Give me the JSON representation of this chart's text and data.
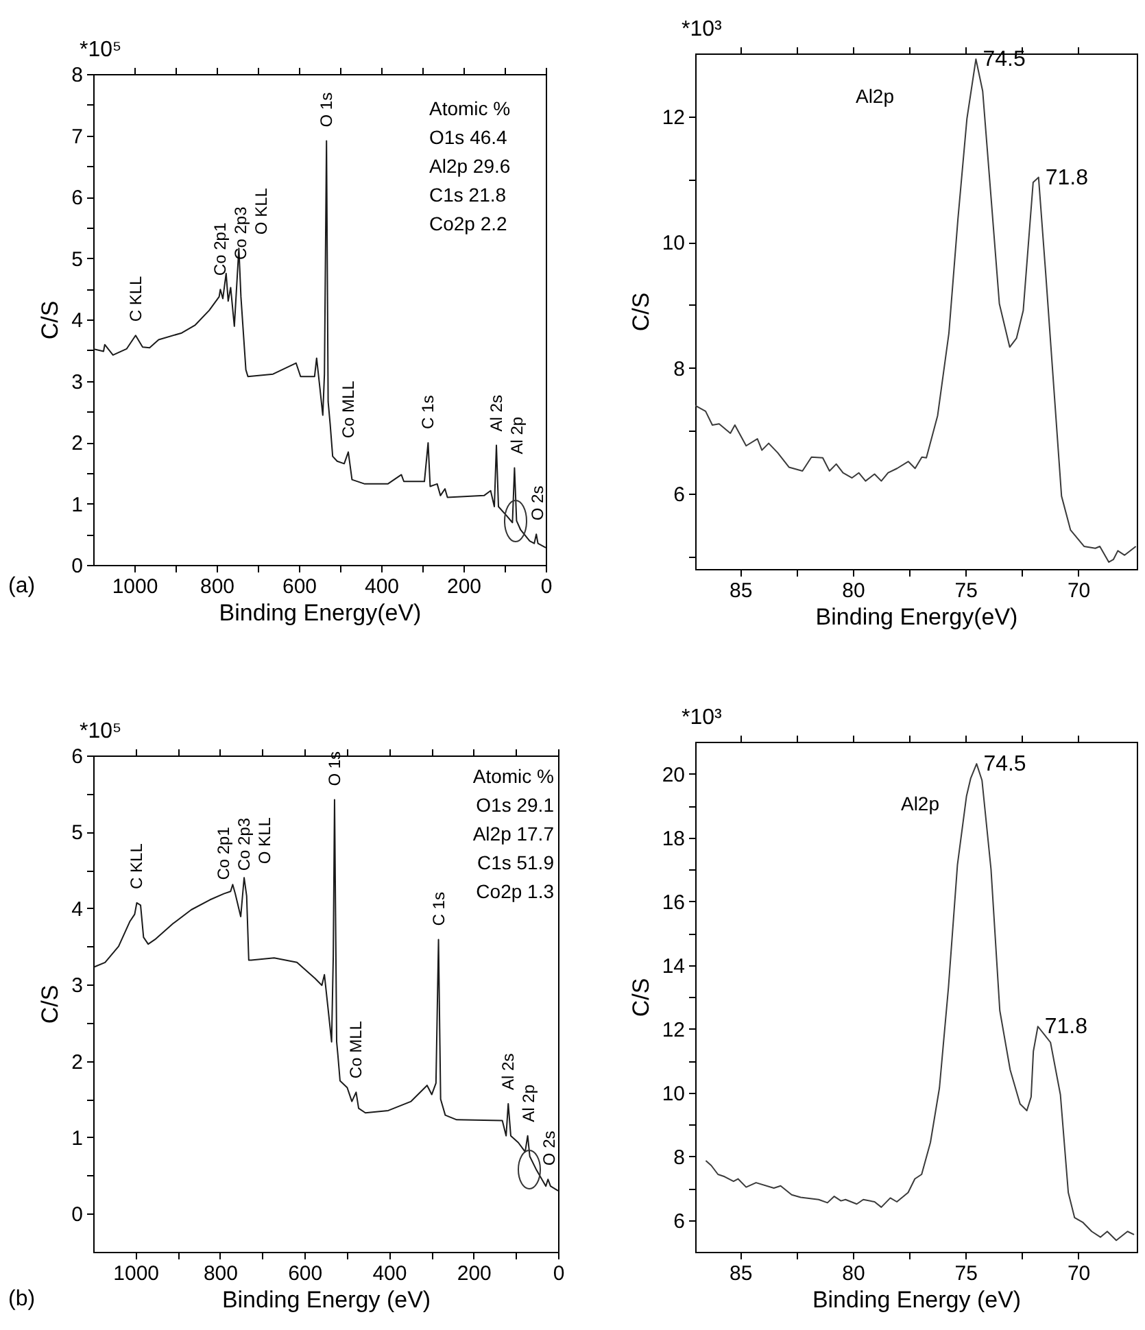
{
  "chart_data": [
    {
      "type": "line",
      "xlabel": "Binding Energy(eV)",
      "ylabel": "C/S",
      "xlim": [
        1100,
        0
      ],
      "ylim": [
        0,
        8
      ],
      "xticks": [
        1000,
        {
          "value": 900,
          "label": null
        },
        800,
        {
          "value": 700,
          "label": null
        },
        600,
        {
          "value": 500,
          "label": null
        },
        400,
        {
          "value": 300,
          "label": null
        },
        200,
        {
          "value": 100,
          "label": null
        },
        0
      ],
      "yticks": [
        0,
        {
          "value": 0.5,
          "label": null
        },
        1,
        {
          "value": 1.5,
          "label": null
        },
        2,
        {
          "value": 2.5,
          "label": null
        },
        3,
        {
          "value": 3.5,
          "label": null
        },
        4,
        {
          "value": 4.5,
          "label": null
        },
        5,
        {
          "value": 5.5,
          "label": null
        },
        6,
        {
          "value": 6.5,
          "label": null
        },
        7,
        {
          "value": 7.5,
          "label": null
        },
        8
      ],
      "series": [
        {
          "color": "#1a1a1a",
          "x": [
            1100,
            1075,
            1072,
            1052,
            1019,
            997,
            980,
            963,
            941,
            885,
            852,
            818,
            794,
            791,
            785,
            777,
            772,
            766,
            757,
            746,
            741,
            729,
            724,
            663,
            607,
            596,
            562,
            557,
            549,
            542,
            538,
            533,
            529,
            524,
            518,
            507,
            490,
            480,
            471,
            440,
            384,
            351,
            345,
            295,
            286,
            281,
            264,
            256,
            245,
            239,
            150,
            134,
            125,
            120,
            115,
            95,
            81,
            76,
            71,
            61,
            39,
            28,
            23,
            19,
            0
          ],
          "values": [
            3.52,
            3.48,
            3.59,
            3.42,
            3.52,
            3.74,
            3.55,
            3.54,
            3.67,
            3.78,
            3.91,
            4.15,
            4.37,
            4.49,
            4.34,
            4.75,
            4.3,
            4.52,
            3.89,
            5.16,
            4.37,
            3.18,
            3.07,
            3.11,
            3.29,
            3.07,
            3.07,
            3.37,
            2.88,
            2.44,
            3.11,
            6.91,
            2.66,
            2.29,
            1.77,
            1.69,
            1.65,
            1.84,
            1.39,
            1.32,
            1.32,
            1.47,
            1.36,
            1.36,
            1.99,
            1.28,
            1.32,
            1.13,
            1.24,
            1.1,
            1.13,
            1.21,
            0.95,
            1.95,
            0.95,
            0.8,
            0.69,
            1.58,
            0.72,
            0.57,
            0.39,
            0.35,
            0.5,
            0.35,
            0.28
          ]
        }
      ],
      "annotations": [
        "*10⁵",
        "(a)",
        "Atomic %",
        "O1s 46.4",
        "Al2p 29.6",
        "C1s 21.8",
        "Co2p 2.2",
        {
          "text": "C KLL",
          "x": 997,
          "y": 3.74
        },
        {
          "text": "Co 2p1",
          "x": 791,
          "y": 4.49
        },
        {
          "text": "Co 2p3",
          "x": 777,
          "y": 4.75
        },
        {
          "text": "O KLL",
          "x": 746,
          "y": 5.16
        },
        {
          "text": "O 1s",
          "x": 533,
          "y": 6.91
        },
        {
          "text": "Co MLL",
          "x": 480,
          "y": 1.84
        },
        {
          "text": "C 1s",
          "x": 286,
          "y": 1.99
        },
        {
          "text": "Al 2s",
          "x": 120,
          "y": 1.95
        },
        {
          "text": "Al 2p",
          "x": 76,
          "y": 1.58
        },
        {
          "text": "O 2s",
          "x": 23,
          "y": 0.5
        }
      ]
    },
    {
      "type": "line",
      "title": "Al2p",
      "xlabel": "Binding Energy(eV)",
      "ylabel": "C/S",
      "xlim": [
        87,
        67.4
      ],
      "ylim": [
        4.8,
        13
      ],
      "xticks": [
        85,
        {
          "value": 82.5,
          "label": null
        },
        80,
        {
          "value": 77.5,
          "label": null
        },
        75,
        {
          "value": 72.5,
          "label": null
        },
        70
      ],
      "yticks": [
        {
          "value": 5,
          "label": null
        },
        6,
        {
          "value": 7,
          "label": null
        },
        8,
        {
          "value": 9,
          "label": null
        },
        10,
        {
          "value": 11,
          "label": null
        },
        12
      ],
      "series": [
        {
          "color": "#3a3a3a",
          "x": [
            87,
            86.54,
            86.24,
            85.94,
            85.44,
            85.24,
            84.74,
            84.24,
            84.04,
            83.74,
            83.34,
            82.84,
            82.24,
            81.84,
            81.34,
            81.04,
            80.74,
            80.44,
            80.04,
            79.74,
            79.44,
            79.04,
            78.74,
            78.44,
            78.04,
            77.54,
            77.24,
            76.94,
            76.74,
            76.24,
            75.74,
            75.34,
            74.94,
            74.54,
            74.24,
            73.84,
            73.5,
            73.04,
            72.74,
            72.44,
            72,
            71.76,
            71.44,
            70.74,
            70.34,
            69.74,
            69.24,
            69.04,
            68.64,
            68.44,
            68.24,
            67.94,
            67.44
          ],
          "values": [
            7.4,
            7.31,
            7.09,
            7.11,
            6.96,
            7.09,
            6.76,
            6.87,
            6.69,
            6.8,
            6.65,
            6.42,
            6.36,
            6.58,
            6.57,
            6.36,
            6.47,
            6.33,
            6.25,
            6.33,
            6.2,
            6.31,
            6.2,
            6.33,
            6.4,
            6.51,
            6.4,
            6.58,
            6.57,
            7.24,
            8.55,
            10.36,
            11.96,
            12.91,
            12.4,
            10.58,
            9.02,
            8.33,
            8.47,
            8.91,
            10.95,
            11.03,
            9.49,
            5.96,
            5.42,
            5.16,
            5.13,
            5.16,
            4.91,
            4.95,
            5.09,
            5.02,
            5.16
          ]
        }
      ],
      "annotations": [
        "*10³",
        {
          "text": "74.5",
          "x": 74.54,
          "y": 12.91
        },
        {
          "text": "71.8",
          "x": 71.76,
          "y": 11.03
        }
      ]
    },
    {
      "type": "line",
      "xlabel": "Binding Energy (eV)",
      "ylabel": "C/S",
      "xlim": [
        1100,
        0
      ],
      "ylim": [
        -0.5,
        6
      ],
      "xticks": [
        1000,
        {
          "value": 900,
          "label": null
        },
        800,
        {
          "value": 700,
          "label": null
        },
        600,
        {
          "value": 500,
          "label": null
        },
        400,
        {
          "value": 300,
          "label": null
        },
        200,
        {
          "value": 100,
          "label": null
        },
        0
      ],
      "yticks": [
        0,
        {
          "value": 0.5,
          "label": null
        },
        1,
        {
          "value": 1.5,
          "label": null
        },
        2,
        {
          "value": 2.5,
          "label": null
        },
        3,
        {
          "value": 3.5,
          "label": null
        },
        4,
        {
          "value": 4.5,
          "label": null
        },
        5,
        {
          "value": 5.5,
          "label": null
        },
        6
      ],
      "series": [
        {
          "color": "#1a1a1a",
          "x": [
            1098,
            1072,
            1040,
            1013,
            1002,
            997,
            988,
            981,
            970,
            954,
            911,
            868,
            824,
            791,
            775,
            770,
            764,
            751,
            743,
            737,
            732,
            726,
            672,
            618,
            575,
            559,
            553,
            545,
            536,
            532,
            529,
            524,
            521,
            516,
            499,
            488,
            478,
            472,
            456,
            402,
            348,
            310,
            299,
            289,
            283,
            278,
            267,
            240,
            132,
            123,
            118,
            112,
            94,
            78,
            72,
            67,
            51,
            29,
            24,
            18,
            0
          ],
          "values": [
            3.23,
            3.29,
            3.5,
            3.83,
            3.92,
            4.07,
            4.04,
            3.62,
            3.53,
            3.59,
            3.8,
            3.98,
            4.11,
            4.19,
            4.22,
            4.31,
            4.19,
            3.89,
            4.4,
            4.16,
            3.32,
            3.32,
            3.35,
            3.29,
            3.08,
            2.99,
            3.13,
            2.72,
            2.25,
            3.38,
            5.42,
            2.25,
            2.07,
            1.74,
            1.65,
            1.47,
            1.59,
            1.38,
            1.32,
            1.35,
            1.47,
            1.68,
            1.56,
            1.71,
            3.59,
            1.5,
            1.29,
            1.23,
            1.22,
            1.02,
            1.44,
            1.02,
            0.93,
            0.81,
            1.02,
            0.75,
            0.57,
            0.36,
            0.45,
            0.36,
            0.3
          ]
        }
      ],
      "annotations": [
        "*10⁵",
        "(b)",
        "Atomic %",
        "O1s 29.1",
        "Al2p 17.7",
        "C1s 51.9",
        "Co2p 1.3",
        {
          "text": "C KLL",
          "x": 997,
          "y": 4.07
        },
        {
          "text": "Co 2p1",
          "x": 791,
          "y": 4.19
        },
        {
          "text": "Co 2p3",
          "x": 770,
          "y": 4.31
        },
        {
          "text": "O KLL",
          "x": 743,
          "y": 4.4
        },
        {
          "text": "O 1s",
          "x": 529,
          "y": 5.42
        },
        {
          "text": "Co MLL",
          "x": 478,
          "y": 1.59
        },
        {
          "text": "C 1s",
          "x": 283,
          "y": 3.59
        },
        {
          "text": "Al 2s",
          "x": 118,
          "y": 1.44
        },
        {
          "text": "Al 2p",
          "x": 72,
          "y": 1.02
        },
        {
          "text": "O 2s",
          "x": 24,
          "y": 0.45
        }
      ]
    },
    {
      "type": "line",
      "title": "Al2p",
      "xlabel": "Binding Energy (eV)",
      "ylabel": "C/S",
      "xlim": [
        87,
        67.4
      ],
      "ylim": [
        5,
        21
      ],
      "xticks": [
        85,
        {
          "value": 82.5,
          "label": null
        },
        80,
        {
          "value": 77.5,
          "label": null
        },
        75,
        {
          "value": 72.5,
          "label": null
        },
        70
      ],
      "yticks": [
        6,
        {
          "value": 7,
          "label": null
        },
        8,
        {
          "value": 9,
          "label": null
        },
        10,
        {
          "value": 11,
          "label": null
        },
        12,
        {
          "value": 13,
          "label": null
        },
        14,
        {
          "value": 15,
          "label": null
        },
        16,
        {
          "value": 17,
          "label": null
        },
        18,
        {
          "value": 19,
          "label": null
        },
        20
      ],
      "series": [
        {
          "color": "#3a3a3a",
          "x": [
            86.53,
            86.29,
            85.99,
            85.7,
            85.3,
            85.1,
            84.74,
            84.3,
            83.51,
            83.21,
            82.72,
            82.32,
            81.52,
            81.13,
            80.83,
            80.53,
            80.33,
            79.83,
            79.54,
            79.04,
            78.74,
            78.34,
            78.05,
            77.55,
            77.25,
            76.95,
            76.56,
            76.16,
            75.76,
            75.36,
            74.96,
            74.77,
            74.51,
            74.27,
            73.87,
            73.48,
            73.02,
            72.58,
            72.28,
            72.09,
            71.99,
            71.79,
            71.23,
            70.79,
            70.44,
            70.16,
            69.8,
            69.4,
            69.01,
            68.71,
            68.31,
            67.81,
            67.52
          ],
          "values": [
            7.86,
            7.71,
            7.43,
            7.36,
            7.21,
            7.29,
            7.03,
            7.17,
            7,
            7.07,
            6.79,
            6.71,
            6.64,
            6.54,
            6.74,
            6.6,
            6.64,
            6.5,
            6.64,
            6.57,
            6.4,
            6.69,
            6.57,
            6.86,
            7.29,
            7.43,
            8.43,
            10.14,
            13.29,
            17.14,
            19.29,
            19.86,
            20.31,
            19.79,
            17,
            12.57,
            10.71,
            9.64,
            9.43,
            9.86,
            11.29,
            12.07,
            11.57,
            9.93,
            6.86,
            6.07,
            5.93,
            5.64,
            5.46,
            5.64,
            5.36,
            5.64,
            5.54
          ]
        }
      ],
      "annotations": [
        "*10³",
        {
          "text": "74.5",
          "x": 74.51,
          "y": 20.31
        },
        {
          "text": "71.8",
          "x": 71.79,
          "y": 12.07
        }
      ]
    }
  ]
}
